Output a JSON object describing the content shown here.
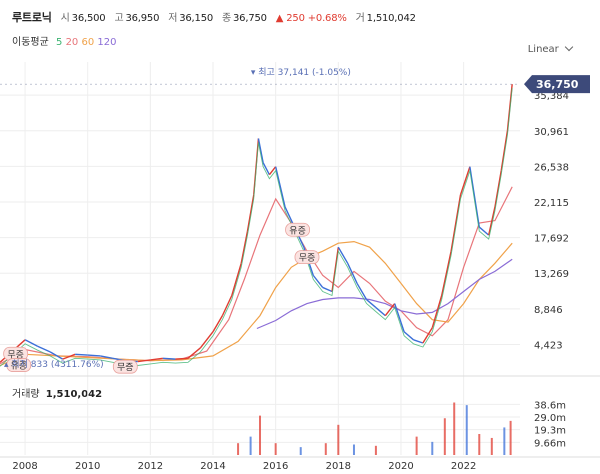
{
  "quote": {
    "name": "루트로닉",
    "open_label": "시",
    "open": "36,500",
    "high_label": "고",
    "high": "36,950",
    "low_label": "저",
    "low": "36,150",
    "close_label": "종",
    "close": "36,750",
    "change": "▲ 250 +0.68%",
    "volume_label": "거",
    "volume": "1,510,042"
  },
  "moving_average": {
    "label": "이동평균",
    "periods": [
      {
        "text": "5",
        "color": "#3cb371"
      },
      {
        "text": "20",
        "color": "#e8757a"
      },
      {
        "text": "60",
        "color": "#f0a24a"
      },
      {
        "text": "120",
        "color": "#8a6cd6"
      }
    ]
  },
  "scale_button": "Linear",
  "colors": {
    "up": "#e03c31",
    "down": "#3b6fd8",
    "grid": "#eeeeee",
    "ma5": "#3cb371",
    "ma20": "#e8757a",
    "ma60": "#f0a24a",
    "ma120": "#8a6cd6",
    "current_tag": "#3d4a7a"
  },
  "chart_data": {
    "type": "line",
    "title": "",
    "xlabel": "",
    "ylabel": "",
    "x_ticks": [
      "2008",
      "2010",
      "2012",
      "2014",
      "2016",
      "2018",
      "2020",
      "2022"
    ],
    "y_ticks": [
      "4,423",
      "8,846",
      "13,269",
      "17,692",
      "22,115",
      "26,538",
      "30,961",
      "35,384"
    ],
    "ylim": [
      1000,
      39500
    ],
    "xlim": [
      2007.2,
      2023.8
    ],
    "current_price": {
      "label": "36,750",
      "value": 36750
    },
    "high_annotation": {
      "text": "최고 37,141 (-1.05%)",
      "x": 2015.4,
      "value": 37141
    },
    "low_annotation": {
      "text": "최저 833 (4311.76%)",
      "x": 2007.3,
      "value": 833
    },
    "events": [
      {
        "label": "무증",
        "x": 2007.7,
        "value": 3200
      },
      {
        "label": "유증",
        "x": 2007.8,
        "value": 1800
      },
      {
        "label": "무증",
        "x": 2011.2,
        "value": 1600
      },
      {
        "label": "유증",
        "x": 2016.7,
        "value": 18600
      },
      {
        "label": "무증",
        "x": 2017.0,
        "value": 15200
      }
    ],
    "price_series": {
      "name": "",
      "x": [
        2007.2,
        2007.6,
        2008.0,
        2008.4,
        2008.8,
        2009.2,
        2009.6,
        2010.0,
        2010.4,
        2010.8,
        2011.2,
        2011.6,
        2012.0,
        2012.4,
        2012.8,
        2013.2,
        2013.6,
        2014.0,
        2014.3,
        2014.6,
        2014.9,
        2015.1,
        2015.3,
        2015.45,
        2015.6,
        2015.8,
        2016.0,
        2016.3,
        2016.6,
        2016.9,
        2017.2,
        2017.5,
        2017.8,
        2018.0,
        2018.3,
        2018.6,
        2018.9,
        2019.2,
        2019.5,
        2019.8,
        2020.1,
        2020.4,
        2020.7,
        2021.0,
        2021.3,
        2021.6,
        2021.9,
        2022.2,
        2022.5,
        2022.8,
        2023.0,
        2023.2,
        2023.4,
        2023.55
      ],
      "values": [
        2200,
        3600,
        5000,
        4200,
        3500,
        2600,
        3200,
        3100,
        3000,
        2700,
        2400,
        2300,
        2500,
        2700,
        2600,
        2700,
        4000,
        6000,
        8000,
        10500,
        14500,
        18500,
        23000,
        30000,
        27000,
        25500,
        26500,
        21500,
        19000,
        16500,
        13000,
        11500,
        11000,
        16500,
        14500,
        12000,
        10000,
        9000,
        8000,
        9500,
        6000,
        5000,
        4600,
        6500,
        10500,
        16000,
        23000,
        26500,
        19000,
        18000,
        21500,
        26000,
        31000,
        36750
      ]
    },
    "ma_series": [
      {
        "name": "",
        "period": 20,
        "x": [
          2007.2,
          2008.0,
          2009.0,
          2010.0,
          2011.0,
          2012.0,
          2013.0,
          2013.8,
          2014.5,
          2015.0,
          2015.5,
          2016.0,
          2016.5,
          2017.0,
          2017.5,
          2018.0,
          2018.5,
          2019.0,
          2019.5,
          2020.0,
          2020.5,
          2021.0,
          2021.5,
          2022.0,
          2022.5,
          2023.0,
          2023.55
        ],
        "values": [
          2000,
          3800,
          3000,
          2900,
          2600,
          2400,
          2600,
          3600,
          7500,
          12500,
          18000,
          22500,
          19500,
          16000,
          13000,
          11500,
          13500,
          12000,
          9800,
          8600,
          6500,
          5500,
          7500,
          14000,
          19500,
          19800,
          24000
        ]
      },
      {
        "name": "",
        "period": 60,
        "x": [
          2007.2,
          2008.0,
          2009.0,
          2010.0,
          2011.0,
          2012.0,
          2013.0,
          2014.0,
          2014.8,
          2015.5,
          2016.0,
          2016.5,
          2017.0,
          2017.5,
          2018.0,
          2018.5,
          2019.0,
          2019.5,
          2020.0,
          2020.5,
          2021.0,
          2021.5,
          2022.0,
          2022.5,
          2023.0,
          2023.55
        ],
        "values": [
          1800,
          3200,
          3000,
          2800,
          2600,
          2400,
          2500,
          3000,
          4800,
          8000,
          11500,
          14000,
          15200,
          16000,
          17000,
          17200,
          16500,
          14500,
          12000,
          9500,
          7500,
          7200,
          9500,
          12500,
          14500,
          17000
        ]
      },
      {
        "name": "",
        "period": 120,
        "x": [
          2015.4,
          2016.0,
          2016.5,
          2017.0,
          2017.5,
          2018.0,
          2018.5,
          2019.0,
          2019.5,
          2020.0,
          2020.5,
          2021.0,
          2021.5,
          2022.0,
          2022.5,
          2023.0,
          2023.55
        ],
        "values": [
          6400,
          7400,
          8600,
          9500,
          10000,
          10200,
          10200,
          10000,
          9500,
          8600,
          8200,
          8400,
          9500,
          11000,
          12500,
          13500,
          15000
        ]
      }
    ],
    "volume": {
      "label": "거래량",
      "value": "1,510,042",
      "y_ticks": [
        "38.6m",
        "29.0m",
        "19.3m",
        "9.66m"
      ],
      "ylim": [
        0,
        48000000
      ],
      "x": [
        2014.8,
        2015.2,
        2015.5,
        2016.0,
        2016.8,
        2017.6,
        2018.0,
        2018.5,
        2019.2,
        2020.5,
        2021.0,
        2021.4,
        2021.7,
        2022.1,
        2022.5,
        2022.9,
        2023.3,
        2023.5
      ],
      "values": [
        9000000,
        14000000,
        30000000,
        9000000,
        6000000,
        9000000,
        23000000,
        8000000,
        7000000,
        14000000,
        10000000,
        28000000,
        40000000,
        38000000,
        16000000,
        13000000,
        21000000,
        26000000
      ]
    }
  }
}
